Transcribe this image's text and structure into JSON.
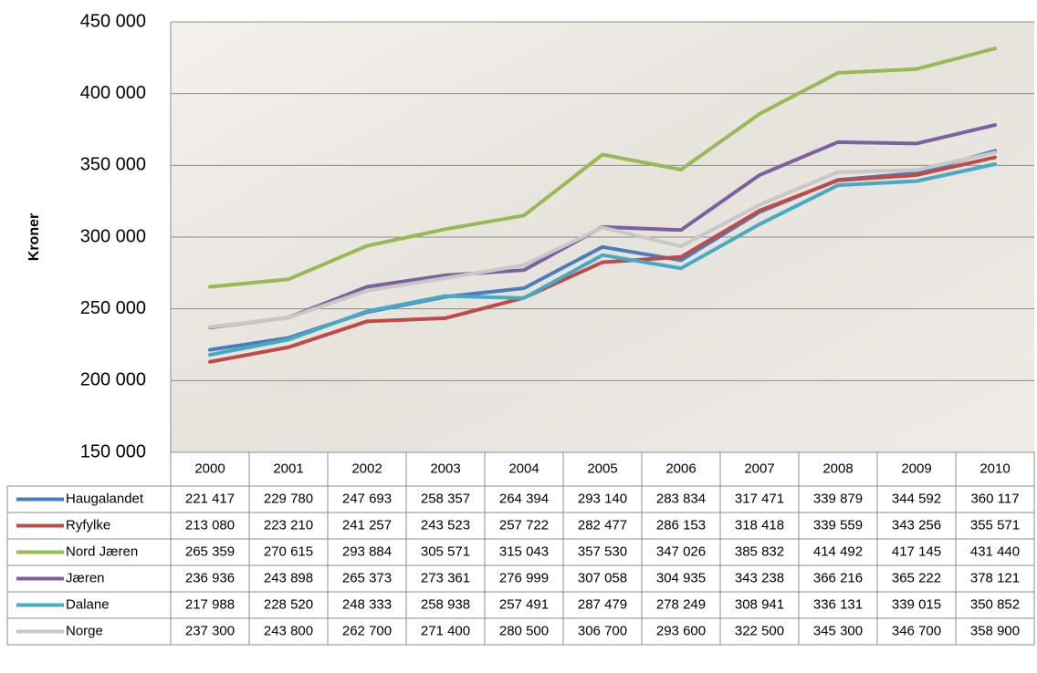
{
  "chart_data": {
    "type": "line",
    "y_label": "Kroner",
    "categories": [
      "2000",
      "2001",
      "2002",
      "2003",
      "2004",
      "2005",
      "2006",
      "2007",
      "2008",
      "2009",
      "2010"
    ],
    "ylim": [
      150000,
      450000
    ],
    "yticks": [
      {
        "value": 150000,
        "label": "150 000"
      },
      {
        "value": 200000,
        "label": "200 000"
      },
      {
        "value": 250000,
        "label": "250 000"
      },
      {
        "value": 300000,
        "label": "300 000"
      },
      {
        "value": 350000,
        "label": "350 000"
      },
      {
        "value": 400000,
        "label": "400 000"
      },
      {
        "value": 450000,
        "label": "450 000"
      }
    ],
    "grid": true,
    "series": [
      {
        "name": "Haugalandet",
        "color": "#4a7ebb",
        "values": [
          221417,
          229780,
          247693,
          258357,
          264394,
          293140,
          283834,
          317471,
          339879,
          344592,
          360117
        ],
        "value_labels": [
          "221 417",
          "229 780",
          "247 693",
          "258 357",
          "264 394",
          "293 140",
          "283 834",
          "317 471",
          "339 879",
          "344 592",
          "360 117"
        ]
      },
      {
        "name": "Ryfylke",
        "color": "#be4b48",
        "values": [
          213080,
          223210,
          241257,
          243523,
          257722,
          282477,
          286153,
          318418,
          339559,
          343256,
          355571
        ],
        "value_labels": [
          "213 080",
          "223 210",
          "241 257",
          "243 523",
          "257 722",
          "282 477",
          "286 153",
          "318 418",
          "339 559",
          "343 256",
          "355 571"
        ]
      },
      {
        "name": "Nord Jæren",
        "color": "#98b954",
        "values": [
          265359,
          270615,
          293884,
          305571,
          315043,
          357530,
          347026,
          385832,
          414492,
          417145,
          431440
        ],
        "value_labels": [
          "265 359",
          "270 615",
          "293 884",
          "305 571",
          "315 043",
          "357 530",
          "347 026",
          "385 832",
          "414 492",
          "417 145",
          "431 440"
        ]
      },
      {
        "name": "Jæren",
        "color": "#7d60a0",
        "values": [
          236936,
          243898,
          265373,
          273361,
          276999,
          307058,
          304935,
          343238,
          366216,
          365222,
          378121
        ],
        "value_labels": [
          "236 936",
          "243 898",
          "265 373",
          "273 361",
          "276 999",
          "307 058",
          "304 935",
          "343 238",
          "366 216",
          "365 222",
          "378 121"
        ]
      },
      {
        "name": "Dalane",
        "color": "#46aac5",
        "values": [
          217988,
          228520,
          248333,
          258938,
          257491,
          287479,
          278249,
          308941,
          336131,
          339015,
          350852
        ],
        "value_labels": [
          "217 988",
          "228 520",
          "248 333",
          "258 938",
          "257 491",
          "287 479",
          "278 249",
          "308 941",
          "336 131",
          "339 015",
          "350 852"
        ]
      },
      {
        "name": "Norge",
        "color": "#c8c8c8",
        "values": [
          237300,
          243800,
          262700,
          271400,
          280500,
          306700,
          293600,
          322500,
          345300,
          346700,
          358900
        ],
        "value_labels": [
          "237 300",
          "243 800",
          "262 700",
          "271 400",
          "280 500",
          "306 700",
          "293 600",
          "322 500",
          "345 300",
          "346 700",
          "358 900"
        ]
      }
    ]
  }
}
